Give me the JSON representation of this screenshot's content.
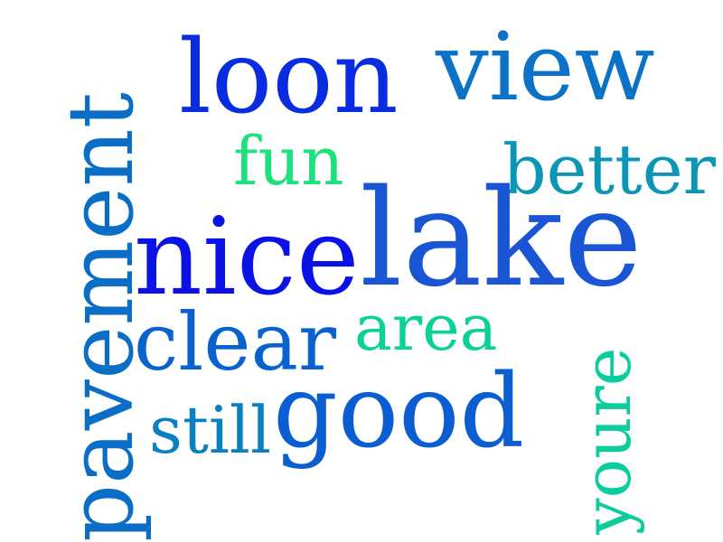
{
  "word_cloud": {
    "words": {
      "lake": {
        "text": "lake",
        "color": "#1a55d6"
      },
      "nice": {
        "text": "nice",
        "color": "#0b12e6"
      },
      "loon": {
        "text": "loon",
        "color": "#0a2ce0"
      },
      "view": {
        "text": "view",
        "color": "#0b72c8"
      },
      "good": {
        "text": "good",
        "color": "#0a5ed2"
      },
      "clear": {
        "text": "clear",
        "color": "#0a62cf"
      },
      "better": {
        "text": "better",
        "color": "#0a96b4"
      },
      "fun": {
        "text": "fun",
        "color": "#1ee07e"
      },
      "area": {
        "text": "area",
        "color": "#0ad296"
      },
      "still": {
        "text": "still",
        "color": "#0a80c0"
      },
      "pavement": {
        "text": "pavement",
        "color": "#0a6ec6"
      },
      "youre": {
        "text": "youre",
        "color": "#0acc9c"
      }
    }
  }
}
